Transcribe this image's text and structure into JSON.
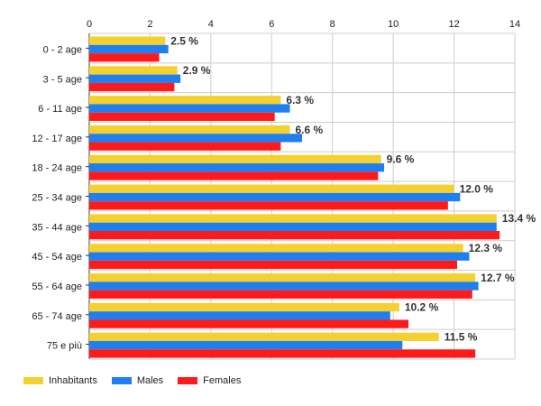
{
  "chart_data": {
    "type": "bar",
    "orientation": "horizontal",
    "categories": [
      "0 - 2 age",
      "3 - 5 age",
      "6 - 11 age",
      "12 - 17 age",
      "18 - 24 age",
      "25 - 34 age",
      "35 - 44 age",
      "45 - 54 age",
      "55 - 64 age",
      "65 - 74 age",
      "75 e più"
    ],
    "series": [
      {
        "name": "Inhabitants",
        "color": "#f5d130",
        "values": [
          2.5,
          2.9,
          6.3,
          6.6,
          9.6,
          12.0,
          13.4,
          12.3,
          12.7,
          10.2,
          11.5
        ]
      },
      {
        "name": "Males",
        "color": "#1f7ef0",
        "values": [
          2.6,
          3.0,
          6.6,
          7.0,
          9.7,
          12.2,
          13.4,
          12.5,
          12.8,
          9.9,
          10.3
        ]
      },
      {
        "name": "Females",
        "color": "#fc1a1a",
        "values": [
          2.3,
          2.8,
          6.1,
          6.3,
          9.5,
          11.8,
          13.5,
          12.1,
          12.6,
          10.5,
          12.7
        ]
      }
    ],
    "data_labels": [
      "2.5 %",
      "2.9 %",
      "6.3 %",
      "6.6 %",
      "9.6 %",
      "12.0 %",
      "13.4 %",
      "12.3 %",
      "12.7 %",
      "10.2 %",
      "11.5 %"
    ],
    "xticks": [
      0,
      2,
      4,
      6,
      8,
      10,
      12,
      14
    ],
    "xlim": [
      0,
      14
    ],
    "grid": true,
    "legend_position": "bottom-left"
  }
}
